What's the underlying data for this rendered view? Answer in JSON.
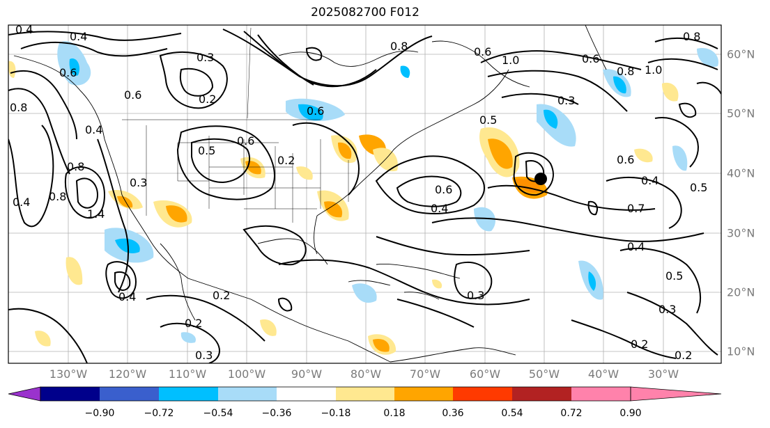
{
  "title": "2025082700 F012",
  "lon_labels": [
    "130°W",
    "120°W",
    "110°W",
    "100°W",
    "90°W",
    "80°W",
    "70°W",
    "60°W",
    "50°W",
    "40°W",
    "30°W"
  ],
  "lat_labels": [
    "60°N",
    "50°N",
    "40°N",
    "30°N",
    "20°N",
    "10°N"
  ],
  "colorbar": {
    "ticks": [
      "−0.90",
      "−0.72",
      "−0.54",
      "−0.36",
      "−0.18",
      "0.18",
      "0.36",
      "0.54",
      "0.72",
      "0.90"
    ],
    "colors": [
      "#9a32cd",
      "#00008b",
      "#3a5fcd",
      "#00bfff",
      "#a8dcf8",
      "#ffffff",
      "#ffe890",
      "#ffa500",
      "#ff3a00",
      "#b22222",
      "#ff82ab"
    ]
  },
  "contour_labels": [
    "0.4",
    "0.4",
    "0.3",
    "0.6",
    "0.2",
    "0.8",
    "0.6",
    "0.6",
    "0.4",
    "0.5",
    "0.6",
    "0.2",
    "0.8",
    "0.8",
    "1.4",
    "0.3",
    "0.4",
    "0.2",
    "0.3",
    "0.4",
    "0.2",
    "0.3",
    "0.8",
    "0.6",
    "1.0",
    "1.0",
    "0.8",
    "0.6",
    "0.5",
    "0.6",
    "0.4",
    "0.3",
    "0.4",
    "0.7",
    "0.4",
    "0.5",
    "0.3",
    "0.2",
    "0.2",
    "0.8",
    "0.5",
    "0.6"
  ],
  "marker": "storm-center"
}
